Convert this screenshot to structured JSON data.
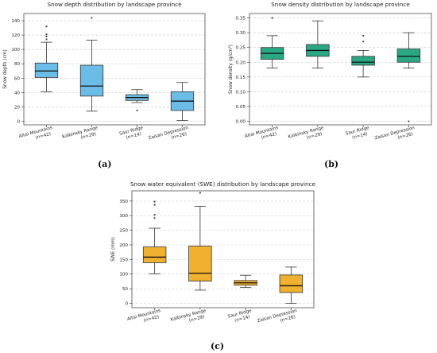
{
  "figure": {
    "panel_labels": [
      "(a)",
      "(b)",
      "(c)"
    ]
  },
  "chart_data": [
    {
      "type": "box",
      "title": "Snow depth distribution by landscape province",
      "ylabel": "Snow depth (cm)",
      "ylim": [
        -5,
        150
      ],
      "yticks": [
        0,
        20,
        40,
        60,
        80,
        100,
        120,
        140
      ],
      "grid": "horizontal dashed",
      "color": "#6bbde8",
      "categories": [
        {
          "name": "Altai Mountains",
          "n": "(n=42)"
        },
        {
          "name": "Kalbinsky Range",
          "n": "(n=29)"
        },
        {
          "name": "Saur Ridge",
          "n": "(n=14)"
        },
        {
          "name": "Zaisan Depression",
          "n": "(n=26)"
        }
      ],
      "boxes": [
        {
          "whislo": 41,
          "q1": 61,
          "med": 70,
          "q3": 81,
          "whishi": 110,
          "fliers": [
            114,
            118,
            121,
            132
          ]
        },
        {
          "whislo": 14,
          "q1": 35,
          "med": 49,
          "q3": 78,
          "whishi": 113,
          "fliers": [
            144
          ]
        },
        {
          "whislo": 26,
          "q1": 29,
          "med": 33,
          "q3": 37,
          "whishi": 44,
          "fliers": [
            15
          ]
        },
        {
          "whislo": 1,
          "q1": 15,
          "med": 28,
          "q3": 41,
          "whishi": 54,
          "fliers": []
        }
      ]
    },
    {
      "type": "box",
      "title": "Snow density distribution by landscape province",
      "ylabel": "Snow density (g/cm³)",
      "ylim": [
        -0.012,
        0.365
      ],
      "yticks": [
        0.0,
        0.05,
        0.1,
        0.15,
        0.2,
        0.25,
        0.3,
        0.35
      ],
      "ytick_labels": [
        "0.00",
        "0.05",
        "0.10",
        "0.15",
        "0.20",
        "0.25",
        "0.30",
        "0.35"
      ],
      "grid": "horizontal dashed",
      "color": "#2aa882",
      "categories": [
        {
          "name": "Altai Mountains",
          "n": "(n=42)"
        },
        {
          "name": "Kalbinsky Range",
          "n": "(n=29)"
        },
        {
          "name": "Saur Ridge",
          "n": "(n=14)"
        },
        {
          "name": "Zaisan Depression",
          "n": "(n=26)"
        }
      ],
      "boxes": [
        {
          "whislo": 0.18,
          "q1": 0.21,
          "med": 0.23,
          "q3": 0.25,
          "whishi": 0.29,
          "fliers": [
            0.35
          ]
        },
        {
          "whislo": 0.18,
          "q1": 0.22,
          "med": 0.24,
          "q3": 0.26,
          "whishi": 0.34,
          "fliers": []
        },
        {
          "whislo": 0.15,
          "q1": 0.19,
          "med": 0.2,
          "q3": 0.22,
          "whishi": 0.24,
          "fliers": [
            0.27,
            0.29
          ]
        },
        {
          "whislo": 0.18,
          "q1": 0.2,
          "med": 0.22,
          "q3": 0.245,
          "whishi": 0.3,
          "fliers": [
            0.0
          ]
        }
      ]
    },
    {
      "type": "box",
      "title": "Snow water equivalent (SWE) distribution by landscape province",
      "ylabel": "SWE (mm)",
      "ylim": [
        -15,
        385
      ],
      "yticks": [
        0,
        50,
        100,
        150,
        200,
        250,
        300,
        350
      ],
      "grid": "horizontal dashed",
      "color": "#f0b030",
      "categories": [
        {
          "name": "Altai Mountains",
          "n": "(n=42)"
        },
        {
          "name": "Kalbinsky Range",
          "n": "(n=29)"
        },
        {
          "name": "Saur Ridge",
          "n": "(n=14)"
        },
        {
          "name": "Zaisan Depression",
          "n": "(n=26)"
        }
      ],
      "boxes": [
        {
          "whislo": 101,
          "q1": 139,
          "med": 158,
          "q3": 193,
          "whishi": 257,
          "fliers": [
            292,
            303,
            337,
            348
          ]
        },
        {
          "whislo": 45,
          "q1": 76,
          "med": 103,
          "q3": 196,
          "whishi": 332,
          "fliers": [
            378
          ]
        },
        {
          "whislo": 54,
          "q1": 62,
          "med": 70,
          "q3": 78,
          "whishi": 96,
          "fliers": []
        },
        {
          "whislo": 0,
          "q1": 37,
          "med": 60,
          "q3": 97,
          "whishi": 124,
          "fliers": []
        }
      ]
    }
  ]
}
